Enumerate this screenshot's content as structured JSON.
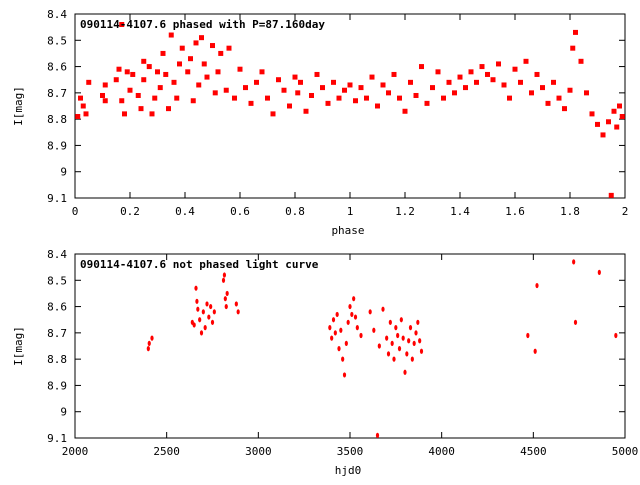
{
  "chart_data": [
    {
      "type": "scatter",
      "title": "090114-4107.6 phased with P=87.160day",
      "xlabel": "phase",
      "ylabel": "I[mag]",
      "xlim": [
        0,
        2
      ],
      "ylim": [
        8.4,
        9.1
      ],
      "y_inverted": true,
      "xticks": [
        0,
        0.2,
        0.4,
        0.6,
        0.8,
        1,
        1.2,
        1.4,
        1.6,
        1.8,
        2
      ],
      "yticks": [
        8.4,
        8.5,
        8.6,
        8.7,
        8.8,
        8.9,
        9,
        9.1
      ],
      "xtick_labels": [
        "0",
        "0.2",
        "0.4",
        "0.6",
        "0.8",
        "1",
        "1.2",
        "1.4",
        "1.6",
        "1.8",
        "2"
      ],
      "ytick_labels": [
        "8.4",
        "8.5",
        "8.6",
        "8.7",
        "8.8",
        "8.9",
        "9",
        "9.1"
      ],
      "marker_color": "#ff0000",
      "grid": false,
      "points": [
        [
          0.01,
          8.79
        ],
        [
          0.02,
          8.72
        ],
        [
          0.03,
          8.75
        ],
        [
          0.04,
          8.78
        ],
        [
          0.05,
          8.66
        ],
        [
          0.1,
          8.71
        ],
        [
          0.11,
          8.67
        ],
        [
          0.11,
          8.73
        ],
        [
          0.15,
          8.65
        ],
        [
          0.16,
          8.61
        ],
        [
          0.17,
          8.44
        ],
        [
          0.17,
          8.73
        ],
        [
          0.18,
          8.78
        ],
        [
          0.19,
          8.62
        ],
        [
          0.2,
          8.69
        ],
        [
          0.21,
          8.63
        ],
        [
          0.23,
          8.71
        ],
        [
          0.24,
          8.76
        ],
        [
          0.25,
          8.58
        ],
        [
          0.25,
          8.65
        ],
        [
          0.27,
          8.6
        ],
        [
          0.28,
          8.78
        ],
        [
          0.29,
          8.72
        ],
        [
          0.3,
          8.62
        ],
        [
          0.31,
          8.68
        ],
        [
          0.32,
          8.55
        ],
        [
          0.33,
          8.63
        ],
        [
          0.34,
          8.76
        ],
        [
          0.35,
          8.48
        ],
        [
          0.36,
          8.66
        ],
        [
          0.37,
          8.72
        ],
        [
          0.38,
          8.59
        ],
        [
          0.39,
          8.53
        ],
        [
          0.41,
          8.62
        ],
        [
          0.42,
          8.57
        ],
        [
          0.43,
          8.73
        ],
        [
          0.44,
          8.51
        ],
        [
          0.45,
          8.67
        ],
        [
          0.46,
          8.49
        ],
        [
          0.47,
          8.59
        ],
        [
          0.48,
          8.64
        ],
        [
          0.5,
          8.52
        ],
        [
          0.51,
          8.7
        ],
        [
          0.52,
          8.62
        ],
        [
          0.53,
          8.55
        ],
        [
          0.55,
          8.69
        ],
        [
          0.56,
          8.53
        ],
        [
          0.58,
          8.72
        ],
        [
          0.6,
          8.61
        ],
        [
          0.62,
          8.68
        ],
        [
          0.64,
          8.74
        ],
        [
          0.66,
          8.66
        ],
        [
          0.68,
          8.62
        ],
        [
          0.7,
          8.72
        ],
        [
          0.72,
          8.78
        ],
        [
          0.74,
          8.65
        ],
        [
          0.76,
          8.69
        ],
        [
          0.78,
          8.75
        ],
        [
          0.8,
          8.64
        ],
        [
          0.81,
          8.7
        ],
        [
          0.82,
          8.66
        ],
        [
          0.84,
          8.77
        ],
        [
          0.86,
          8.71
        ],
        [
          0.88,
          8.63
        ],
        [
          0.9,
          8.68
        ],
        [
          0.92,
          8.74
        ],
        [
          0.94,
          8.66
        ],
        [
          0.96,
          8.72
        ],
        [
          0.98,
          8.69
        ],
        [
          1.0,
          8.67
        ],
        [
          1.02,
          8.73
        ],
        [
          1.04,
          8.68
        ],
        [
          1.06,
          8.72
        ],
        [
          1.08,
          8.64
        ],
        [
          1.1,
          8.75
        ],
        [
          1.12,
          8.67
        ],
        [
          1.14,
          8.7
        ],
        [
          1.16,
          8.63
        ],
        [
          1.18,
          8.72
        ],
        [
          1.2,
          8.77
        ],
        [
          1.22,
          8.66
        ],
        [
          1.24,
          8.71
        ],
        [
          1.26,
          8.6
        ],
        [
          1.28,
          8.74
        ],
        [
          1.3,
          8.68
        ],
        [
          1.32,
          8.62
        ],
        [
          1.34,
          8.72
        ],
        [
          1.36,
          8.66
        ],
        [
          1.38,
          8.7
        ],
        [
          1.4,
          8.64
        ],
        [
          1.42,
          8.68
        ],
        [
          1.44,
          8.62
        ],
        [
          1.46,
          8.66
        ],
        [
          1.48,
          8.6
        ],
        [
          1.5,
          8.63
        ],
        [
          1.52,
          8.65
        ],
        [
          1.54,
          8.59
        ],
        [
          1.56,
          8.67
        ],
        [
          1.58,
          8.72
        ],
        [
          1.6,
          8.61
        ],
        [
          1.62,
          8.66
        ],
        [
          1.64,
          8.58
        ],
        [
          1.66,
          8.7
        ],
        [
          1.68,
          8.63
        ],
        [
          1.7,
          8.68
        ],
        [
          1.72,
          8.74
        ],
        [
          1.74,
          8.66
        ],
        [
          1.76,
          8.72
        ],
        [
          1.78,
          8.76
        ],
        [
          1.8,
          8.69
        ],
        [
          1.81,
          8.53
        ],
        [
          1.82,
          8.47
        ],
        [
          1.84,
          8.58
        ],
        [
          1.86,
          8.7
        ],
        [
          1.88,
          8.78
        ],
        [
          1.9,
          8.82
        ],
        [
          1.92,
          8.86
        ],
        [
          1.94,
          8.81
        ],
        [
          1.95,
          9.09
        ],
        [
          1.96,
          8.77
        ],
        [
          1.97,
          8.83
        ],
        [
          1.98,
          8.75
        ],
        [
          1.99,
          8.79
        ]
      ]
    },
    {
      "type": "scatter",
      "title": "090114-4107.6 not phased light curve",
      "xlabel": "hjd0",
      "ylabel": "I[mag]",
      "xlim": [
        2000,
        5000
      ],
      "ylim": [
        8.4,
        9.1
      ],
      "y_inverted": true,
      "xticks": [
        2000,
        2500,
        3000,
        3500,
        4000,
        4500,
        5000
      ],
      "yticks": [
        8.4,
        8.5,
        8.6,
        8.7,
        8.8,
        8.9,
        9,
        9.1
      ],
      "xtick_labels": [
        "2000",
        "2500",
        "3000",
        "3500",
        "4000",
        "4500",
        "5000"
      ],
      "ytick_labels": [
        "8.4",
        "8.5",
        "8.6",
        "8.7",
        "8.8",
        "8.9",
        "9",
        "9.1"
      ],
      "marker_color": "#ff0000",
      "grid": false,
      "points": [
        [
          2400,
          8.76
        ],
        [
          2405,
          8.74
        ],
        [
          2420,
          8.72
        ],
        [
          2640,
          8.66
        ],
        [
          2650,
          8.67
        ],
        [
          2660,
          8.53
        ],
        [
          2665,
          8.58
        ],
        [
          2670,
          8.61
        ],
        [
          2680,
          8.65
        ],
        [
          2690,
          8.7
        ],
        [
          2700,
          8.62
        ],
        [
          2710,
          8.68
        ],
        [
          2720,
          8.59
        ],
        [
          2730,
          8.64
        ],
        [
          2740,
          8.6
        ],
        [
          2750,
          8.66
        ],
        [
          2760,
          8.62
        ],
        [
          2810,
          8.5
        ],
        [
          2815,
          8.48
        ],
        [
          2820,
          8.57
        ],
        [
          2825,
          8.6
        ],
        [
          2830,
          8.55
        ],
        [
          2880,
          8.59
        ],
        [
          2890,
          8.62
        ],
        [
          3390,
          8.68
        ],
        [
          3400,
          8.72
        ],
        [
          3410,
          8.65
        ],
        [
          3420,
          8.7
        ],
        [
          3430,
          8.63
        ],
        [
          3440,
          8.76
        ],
        [
          3450,
          8.69
        ],
        [
          3460,
          8.8
        ],
        [
          3470,
          8.86
        ],
        [
          3480,
          8.74
        ],
        [
          3490,
          8.66
        ],
        [
          3500,
          8.6
        ],
        [
          3510,
          8.63
        ],
        [
          3520,
          8.57
        ],
        [
          3530,
          8.64
        ],
        [
          3540,
          8.68
        ],
        [
          3560,
          8.71
        ],
        [
          3610,
          8.62
        ],
        [
          3630,
          8.69
        ],
        [
          3650,
          9.09
        ],
        [
          3660,
          8.75
        ],
        [
          3680,
          8.61
        ],
        [
          3700,
          8.72
        ],
        [
          3710,
          8.78
        ],
        [
          3720,
          8.66
        ],
        [
          3730,
          8.74
        ],
        [
          3740,
          8.8
        ],
        [
          3750,
          8.68
        ],
        [
          3760,
          8.71
        ],
        [
          3770,
          8.76
        ],
        [
          3780,
          8.65
        ],
        [
          3790,
          8.72
        ],
        [
          3800,
          8.85
        ],
        [
          3810,
          8.78
        ],
        [
          3820,
          8.73
        ],
        [
          3830,
          8.68
        ],
        [
          3840,
          8.8
        ],
        [
          3850,
          8.74
        ],
        [
          3860,
          8.7
        ],
        [
          3870,
          8.66
        ],
        [
          3880,
          8.73
        ],
        [
          3890,
          8.77
        ],
        [
          4470,
          8.71
        ],
        [
          4510,
          8.77
        ],
        [
          4520,
          8.52
        ],
        [
          4720,
          8.43
        ],
        [
          4730,
          8.66
        ],
        [
          4860,
          8.47
        ],
        [
          4950,
          8.71
        ]
      ]
    }
  ]
}
